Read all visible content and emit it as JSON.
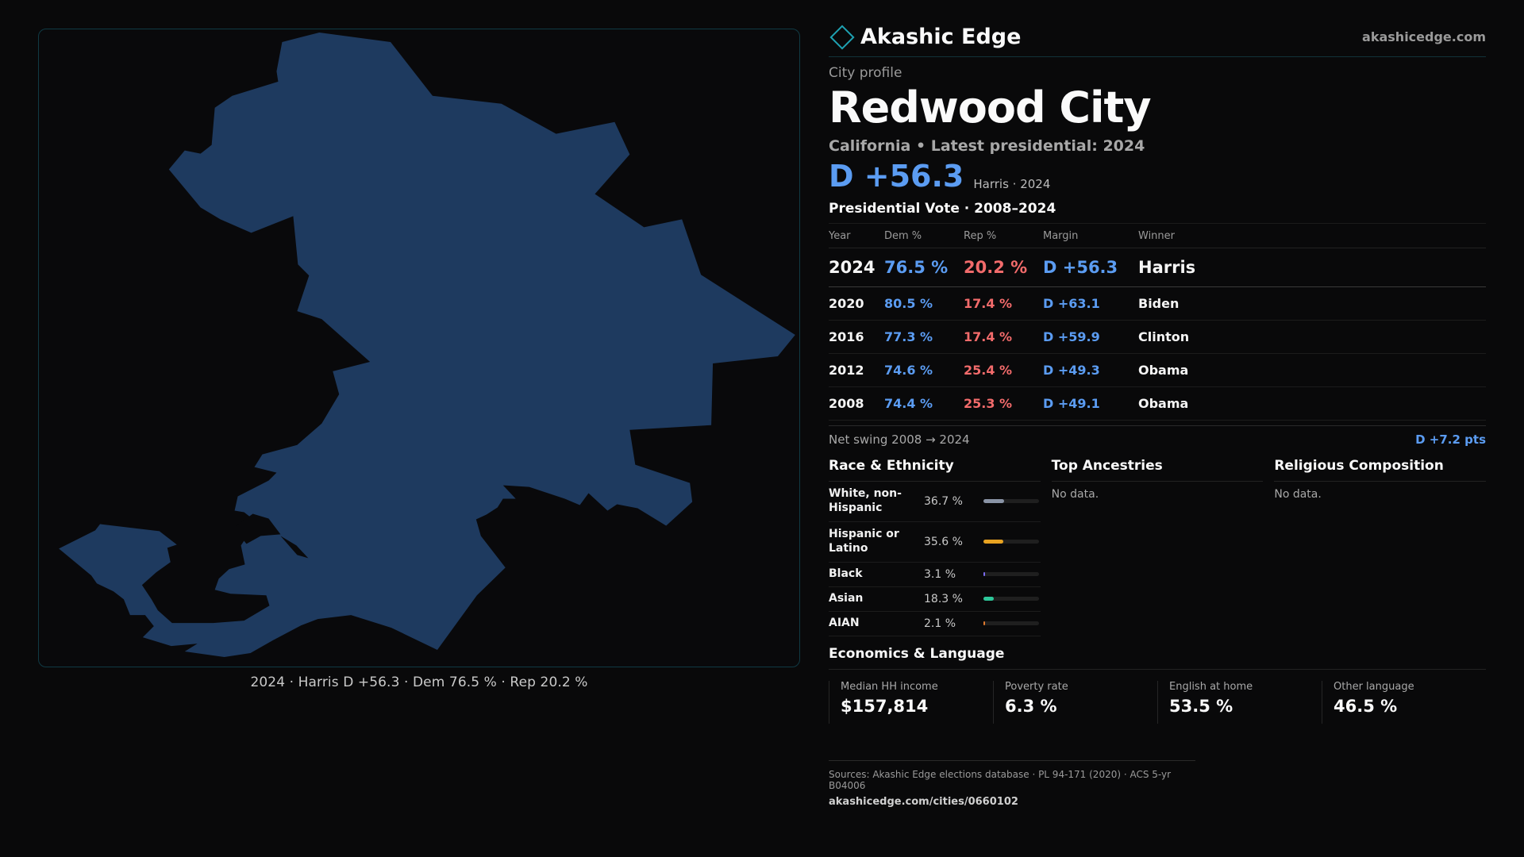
{
  "map": {
    "caption": "2024 · Harris D +56.3 · Dem 76.5 % · Rep 20.2 %",
    "fill_color": "#1e3a5f"
  },
  "header": {
    "brand": "Akashic Edge",
    "url": "akashicedge.com",
    "logo_icon": "diamond-outline-icon"
  },
  "profile": {
    "eyebrow": "City profile",
    "city": "Redwood City",
    "subtitle": "California • Latest presidential: 2024",
    "margin": "D +56.3",
    "margin_note": "Harris · 2024"
  },
  "votes": {
    "heading": "Presidential Vote · 2008–2024",
    "columns": [
      "Year",
      "Dem %",
      "Rep %",
      "Margin",
      "Winner"
    ],
    "rows": [
      {
        "year": "2024",
        "dem": "76.5 %",
        "rep": "20.2 %",
        "margin": "D +56.3",
        "winner": "Harris"
      },
      {
        "year": "2020",
        "dem": "80.5 %",
        "rep": "17.4 %",
        "margin": "D +63.1",
        "winner": "Biden"
      },
      {
        "year": "2016",
        "dem": "77.3 %",
        "rep": "17.4 %",
        "margin": "D +59.9",
        "winner": "Clinton"
      },
      {
        "year": "2012",
        "dem": "74.6 %",
        "rep": "25.4 %",
        "margin": "D +49.3",
        "winner": "Obama"
      },
      {
        "year": "2008",
        "dem": "74.4 %",
        "rep": "25.3 %",
        "margin": "D +49.1",
        "winner": "Obama"
      }
    ],
    "swing_label": "Net swing 2008 → 2024",
    "swing_value": "D +7.2 pts",
    "colors": {
      "dem": "#5b9cf2",
      "rep": "#f26b6b"
    }
  },
  "race": {
    "heading": "Race & Ethnicity",
    "rows": [
      {
        "name": "White, non-Hispanic",
        "pct": "36.7 %",
        "value": 36.7,
        "color": "#8a94a6"
      },
      {
        "name": "Hispanic or Latino",
        "pct": "35.6 %",
        "value": 35.6,
        "color": "#e8a321"
      },
      {
        "name": "Black",
        "pct": "3.1 %",
        "value": 3.1,
        "color": "#7b6cf0"
      },
      {
        "name": "Asian",
        "pct": "18.3 %",
        "value": 18.3,
        "color": "#2dc79a"
      },
      {
        "name": "AIAN",
        "pct": "2.1 %",
        "value": 2.1,
        "color": "#e07a2e"
      }
    ]
  },
  "ancestries": {
    "heading": "Top Ancestries",
    "empty": "No data."
  },
  "religion": {
    "heading": "Religious Composition",
    "empty": "No data."
  },
  "economics": {
    "heading": "Economics & Language",
    "cells": [
      {
        "label": "Median HH income",
        "value": "$157,814"
      },
      {
        "label": "Poverty rate",
        "value": "6.3 %"
      },
      {
        "label": "English at home",
        "value": "53.5 %"
      },
      {
        "label": "Other language",
        "value": "46.5 %"
      }
    ]
  },
  "sources": {
    "line": "Sources: Akashic Edge elections database · PL 94-171 (2020) · ACS 5-yr B04006",
    "url": "akashicedge.com/cities/0660102"
  }
}
